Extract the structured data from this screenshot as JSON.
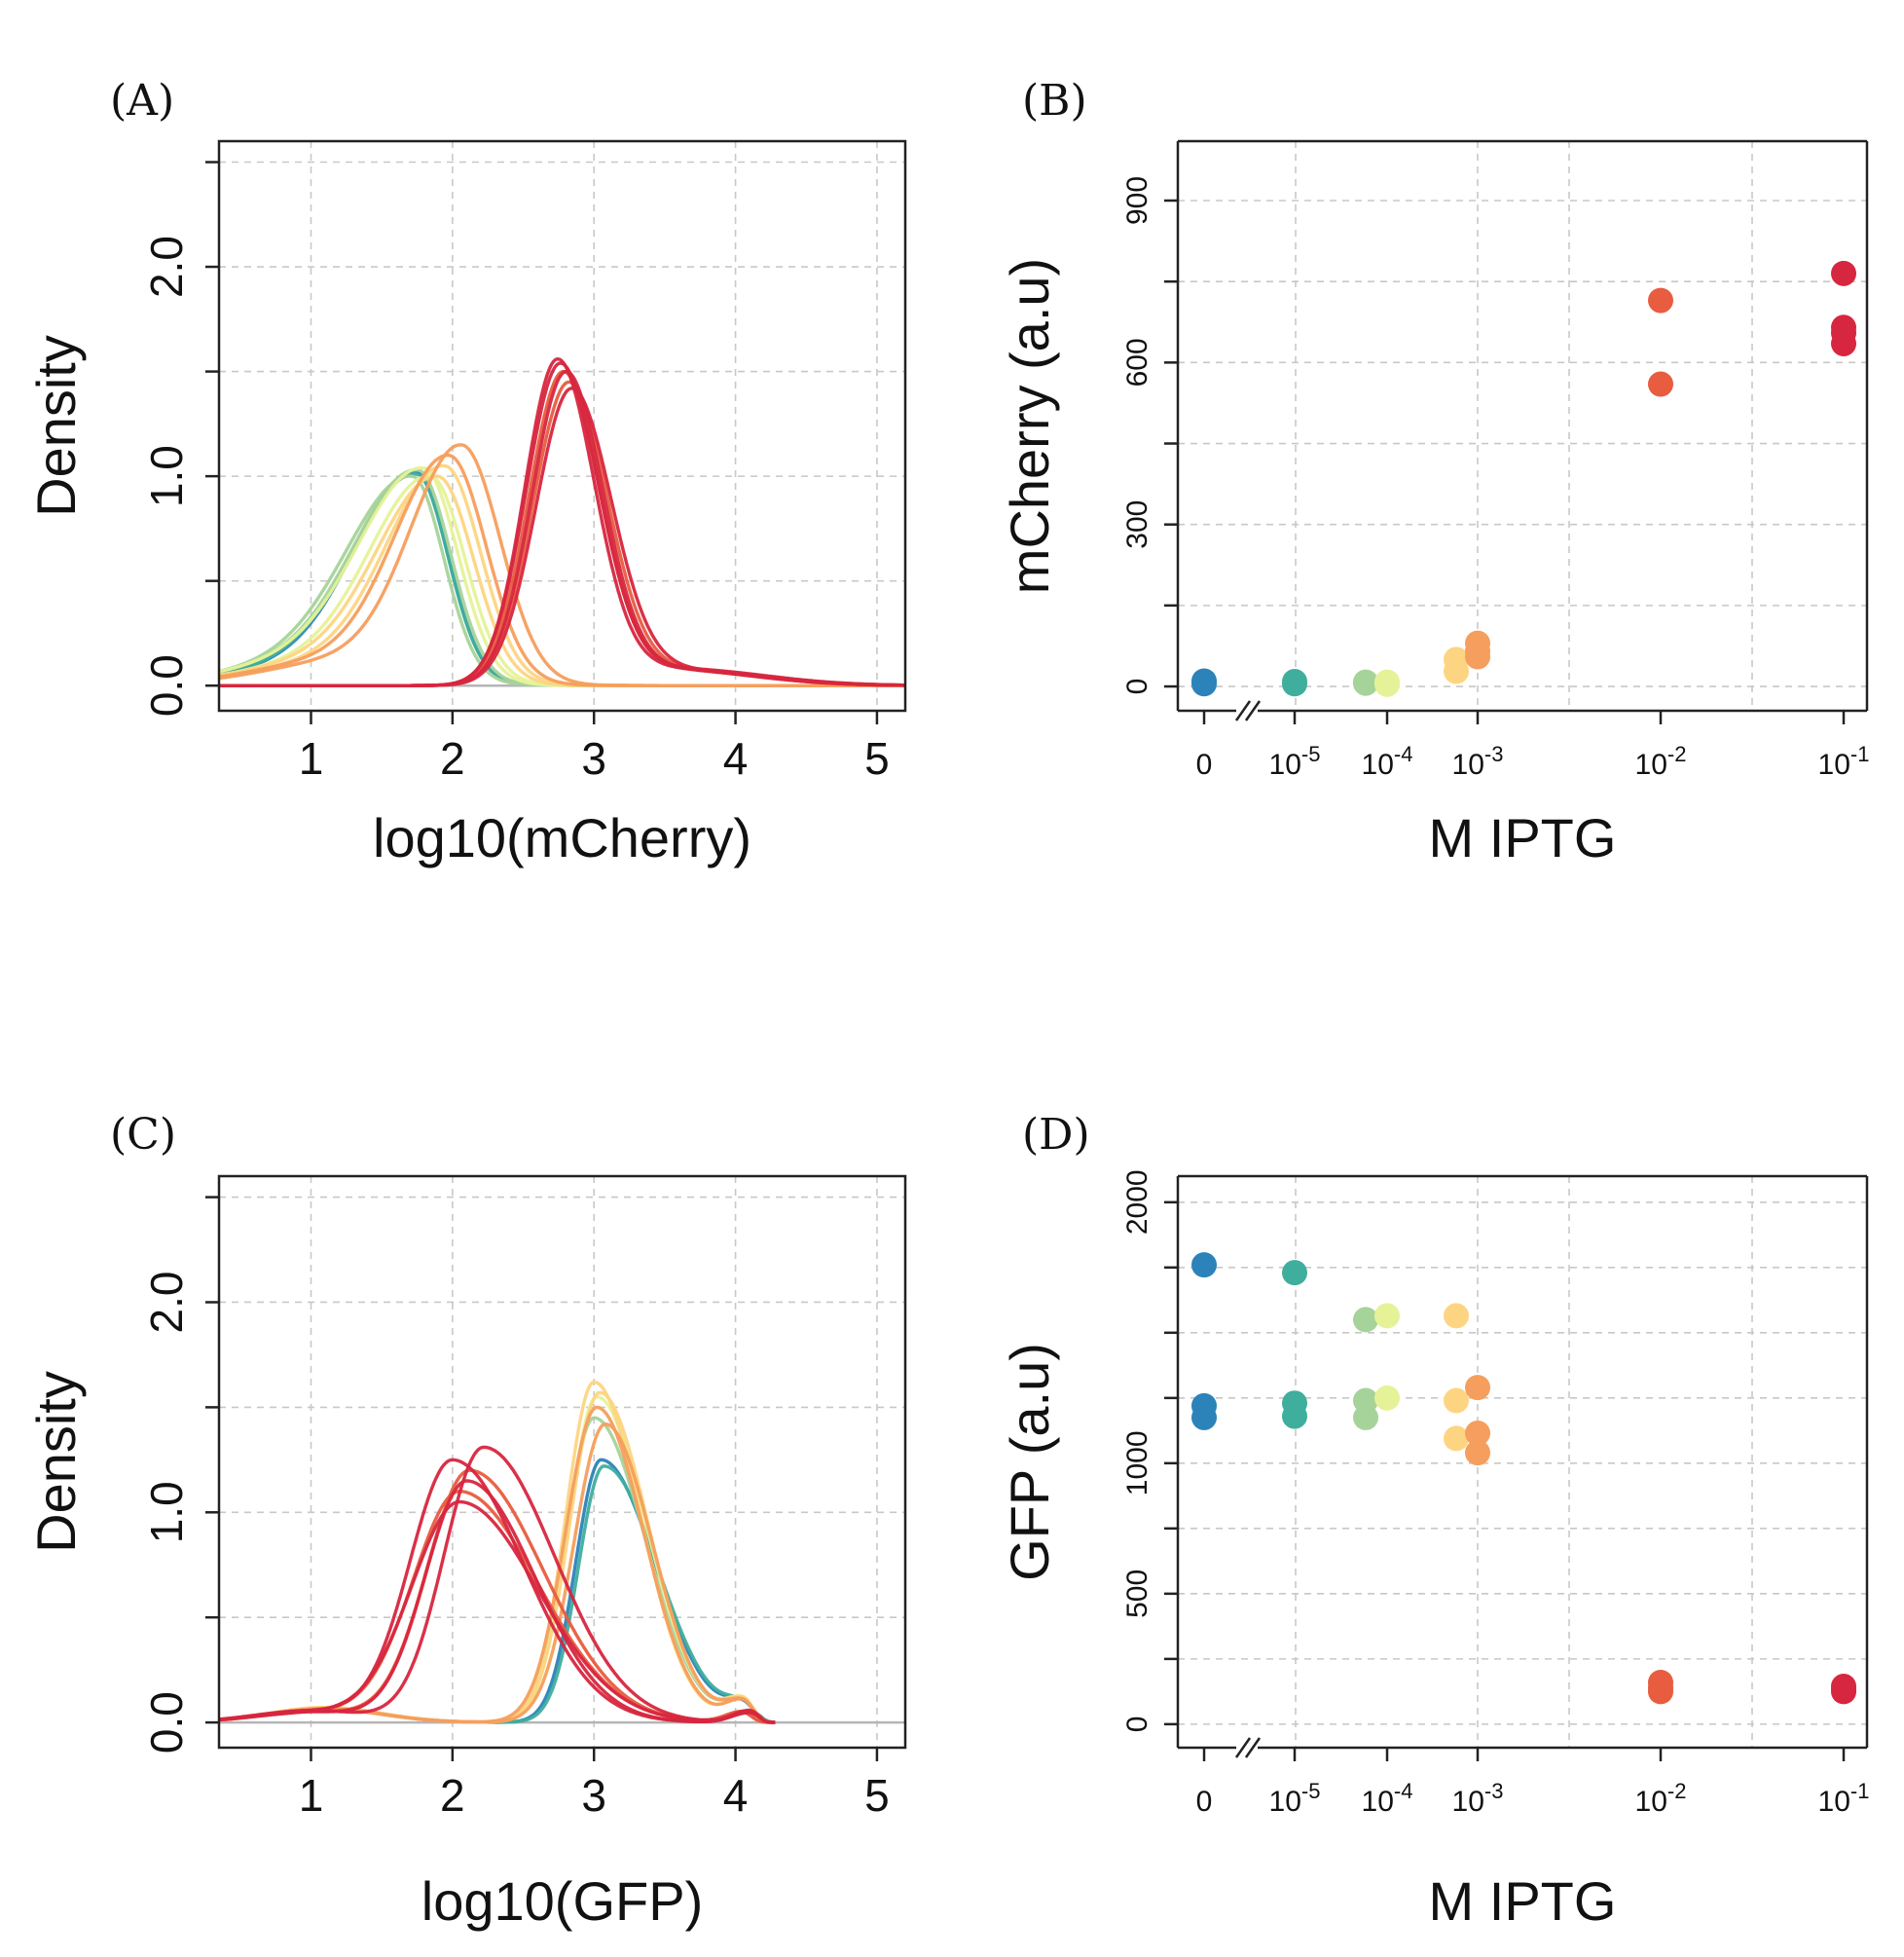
{
  "palette": [
    "#2b83ba",
    "#3fae9d",
    "#a6d399",
    "#e6f298",
    "#fdd582",
    "#f59e5d",
    "#e85c3f",
    "#d7263f"
  ],
  "chart_data": [
    {
      "id": "A",
      "panel_label": "(A)",
      "type": "line",
      "xlabel": "log10(mCherry)",
      "ylabel": "Density",
      "xlim": [
        0.35,
        5.2
      ],
      "ylim": [
        -0.12,
        2.6
      ],
      "xticks": [
        1,
        2,
        3,
        4,
        5
      ],
      "yticks": [
        0.0,
        1.0,
        2.0
      ],
      "ytick_labels": [
        "0.0",
        "1.0",
        "2.0"
      ],
      "grid_y": [
        0.0,
        0.5,
        1.0,
        1.5,
        2.0,
        2.5
      ],
      "series": [
        {
          "group": 1,
          "components": [
            {
              "w": 0.9,
              "mu": 1.75,
              "sl": 0.42,
              "sr": 0.22
            },
            {
              "w": 0.1,
              "mu": 1.1,
              "sl": 0.6,
              "sr": 0.6
            }
          ],
          "peak": 1.02
        },
        {
          "group": 2,
          "components": [
            {
              "w": 0.9,
              "mu": 1.75,
              "sl": 0.43,
              "sr": 0.22
            },
            {
              "w": 0.1,
              "mu": 1.1,
              "sl": 0.6,
              "sr": 0.6
            }
          ],
          "peak": 1.01
        },
        {
          "group": 3,
          "components": [
            {
              "w": 0.9,
              "mu": 1.72,
              "sl": 0.45,
              "sr": 0.22
            },
            {
              "w": 0.1,
              "mu": 1.0,
              "sl": 0.6,
              "sr": 0.6
            }
          ],
          "peak": 1.0
        },
        {
          "group": 3,
          "components": [
            {
              "w": 0.9,
              "mu": 1.76,
              "sl": 0.44,
              "sr": 0.23
            },
            {
              "w": 0.1,
              "mu": 1.0,
              "sl": 0.6,
              "sr": 0.6
            }
          ],
          "peak": 1.03
        },
        {
          "group": 4,
          "components": [
            {
              "w": 0.9,
              "mu": 1.8,
              "sl": 0.45,
              "sr": 0.24
            },
            {
              "w": 0.1,
              "mu": 1.0,
              "sl": 0.6,
              "sr": 0.6
            }
          ],
          "peak": 1.04
        },
        {
          "group": 4,
          "components": [
            {
              "w": 0.9,
              "mu": 1.85,
              "sl": 0.42,
              "sr": 0.24
            },
            {
              "w": 0.1,
              "mu": 1.1,
              "sl": 0.6,
              "sr": 0.6
            }
          ],
          "peak": 1.0
        },
        {
          "group": 5,
          "components": [
            {
              "w": 0.9,
              "mu": 1.9,
              "sl": 0.42,
              "sr": 0.25
            },
            {
              "w": 0.1,
              "mu": 1.1,
              "sl": 0.6,
              "sr": 0.6
            }
          ],
          "peak": 1.0
        },
        {
          "group": 5,
          "components": [
            {
              "w": 0.9,
              "mu": 1.95,
              "sl": 0.4,
              "sr": 0.25
            },
            {
              "w": 0.1,
              "mu": 1.2,
              "sl": 0.6,
              "sr": 0.6
            }
          ],
          "peak": 1.05
        },
        {
          "group": 6,
          "components": [
            {
              "w": 0.9,
              "mu": 1.98,
              "sl": 0.38,
              "sr": 0.26
            },
            {
              "w": 0.1,
              "mu": 1.2,
              "sl": 0.6,
              "sr": 0.6
            }
          ],
          "peak": 1.1
        },
        {
          "group": 6,
          "components": [
            {
              "w": 0.9,
              "mu": 2.07,
              "sl": 0.36,
              "sr": 0.27
            },
            {
              "w": 0.1,
              "mu": 1.3,
              "sl": 0.6,
              "sr": 0.6
            }
          ],
          "peak": 1.15
        },
        {
          "group": 7,
          "components": [
            {
              "w": 0.95,
              "mu": 2.78,
              "sl": 0.24,
              "sr": 0.26
            },
            {
              "w": 0.05,
              "mu": 3.5,
              "sl": 0.5,
              "sr": 0.6
            }
          ],
          "peak": 1.5
        },
        {
          "group": 7,
          "components": [
            {
              "w": 0.95,
              "mu": 2.82,
              "sl": 0.25,
              "sr": 0.27
            },
            {
              "w": 0.05,
              "mu": 3.6,
              "sl": 0.5,
              "sr": 0.6
            }
          ],
          "peak": 1.45
        },
        {
          "group": 8,
          "components": [
            {
              "w": 0.95,
              "mu": 2.74,
              "sl": 0.23,
              "sr": 0.26
            },
            {
              "w": 0.05,
              "mu": 3.5,
              "sl": 0.5,
              "sr": 0.6
            }
          ],
          "peak": 1.56
        },
        {
          "group": 8,
          "components": [
            {
              "w": 0.95,
              "mu": 2.76,
              "sl": 0.24,
              "sr": 0.27
            },
            {
              "w": 0.05,
              "mu": 3.6,
              "sl": 0.5,
              "sr": 0.6
            }
          ],
          "peak": 1.54
        },
        {
          "group": 8,
          "components": [
            {
              "w": 0.95,
              "mu": 2.8,
              "sl": 0.24,
              "sr": 0.26
            },
            {
              "w": 0.05,
              "mu": 3.5,
              "sl": 0.5,
              "sr": 0.6
            }
          ],
          "peak": 1.5
        },
        {
          "group": 8,
          "components": [
            {
              "w": 0.95,
              "mu": 2.84,
              "sl": 0.25,
              "sr": 0.28
            },
            {
              "w": 0.05,
              "mu": 3.6,
              "sl": 0.5,
              "sr": 0.6
            }
          ],
          "peak": 1.42
        }
      ]
    },
    {
      "id": "B",
      "panel_label": "(B)",
      "type": "scatter",
      "xlabel": "M IPTG",
      "ylabel": "mCherry (a.u)",
      "ylim": [
        -45,
        1010
      ],
      "yticks": [
        0,
        300,
        600,
        900
      ],
      "ytick_labels": [
        "0",
        "300",
        "600",
        "900"
      ],
      "grid_y": [
        0,
        150,
        300,
        450,
        600,
        750,
        900
      ],
      "x_categories": [
        {
          "base": "0",
          "exp": ""
        },
        {
          "base": "10",
          "exp": "-5"
        },
        {
          "base": "10",
          "exp": "-4"
        },
        {
          "base": "10",
          "exp": "-3"
        },
        {
          "base": "10",
          "exp": "-2"
        },
        {
          "base": "10",
          "exp": "-1"
        }
      ],
      "x_scale_note": "log axis with break between 0 and 10^-5",
      "points": [
        {
          "x": "0",
          "y": 5,
          "group": 1
        },
        {
          "x": "0",
          "y": 10,
          "group": 1
        },
        {
          "x": "1e-5",
          "y": 5,
          "group": 2
        },
        {
          "x": "1e-5",
          "y": 9,
          "group": 2
        },
        {
          "x": "5e-5",
          "y": 6,
          "group": 3
        },
        {
          "x": "5e-5",
          "y": 8,
          "group": 3
        },
        {
          "x": "1e-4",
          "y": 4,
          "group": 4
        },
        {
          "x": "1e-4",
          "y": 8,
          "group": 4
        },
        {
          "x": "5e-4",
          "y": 28,
          "group": 5
        },
        {
          "x": "5e-4",
          "y": 50,
          "group": 5
        },
        {
          "x": "1e-3",
          "y": 55,
          "group": 6
        },
        {
          "x": "1e-3",
          "y": 65,
          "group": 6
        },
        {
          "x": "1e-3",
          "y": 80,
          "group": 6
        },
        {
          "x": "1e-2",
          "y": 560,
          "group": 7
        },
        {
          "x": "1e-2",
          "y": 715,
          "group": 7
        },
        {
          "x": "1e-1",
          "y": 635,
          "group": 8
        },
        {
          "x": "1e-1",
          "y": 655,
          "group": 8
        },
        {
          "x": "1e-1",
          "y": 665,
          "group": 8
        },
        {
          "x": "1e-1",
          "y": 765,
          "group": 8
        }
      ]
    },
    {
      "id": "C",
      "panel_label": "(C)",
      "type": "line",
      "xlabel": "log10(GFP)",
      "ylabel": "Density",
      "xlim": [
        0.35,
        5.2
      ],
      "ylim": [
        -0.12,
        2.6
      ],
      "xticks": [
        1,
        2,
        3,
        4,
        5
      ],
      "yticks": [
        0.0,
        1.0,
        2.0
      ],
      "ytick_labels": [
        "0.0",
        "1.0",
        "2.0"
      ],
      "grid_y": [
        0.0,
        0.5,
        1.0,
        1.5,
        2.0,
        2.5
      ],
      "series": [
        {
          "group": 1,
          "components": [
            {
              "w": 0.9,
              "mu": 3.05,
              "sl": 0.18,
              "sr": 0.38
            },
            {
              "w": 0.05,
              "mu": 4.05,
              "sl": 0.12,
              "sr": 0.07
            },
            {
              "w": 0.05,
              "mu": 1.1,
              "sl": 0.4,
              "sr": 0.4
            }
          ],
          "peak": 1.25
        },
        {
          "group": 2,
          "components": [
            {
              "w": 0.9,
              "mu": 3.07,
              "sl": 0.18,
              "sr": 0.38
            },
            {
              "w": 0.05,
              "mu": 4.05,
              "sl": 0.12,
              "sr": 0.07
            },
            {
              "w": 0.05,
              "mu": 1.1,
              "sl": 0.4,
              "sr": 0.4
            }
          ],
          "peak": 1.22
        },
        {
          "group": 3,
          "components": [
            {
              "w": 0.9,
              "mu": 3.0,
              "sl": 0.2,
              "sr": 0.36
            },
            {
              "w": 0.06,
              "mu": 4.05,
              "sl": 0.12,
              "sr": 0.07
            },
            {
              "w": 0.04,
              "mu": 1.1,
              "sl": 0.4,
              "sr": 0.4
            }
          ],
          "peak": 1.45
        },
        {
          "group": 4,
          "components": [
            {
              "w": 0.9,
              "mu": 3.02,
              "sl": 0.2,
              "sr": 0.35
            },
            {
              "w": 0.06,
              "mu": 4.05,
              "sl": 0.12,
              "sr": 0.07
            },
            {
              "w": 0.04,
              "mu": 1.1,
              "sl": 0.4,
              "sr": 0.4
            }
          ],
          "peak": 1.55
        },
        {
          "group": 5,
          "components": [
            {
              "w": 0.9,
              "mu": 3.0,
              "sl": 0.2,
              "sr": 0.33
            },
            {
              "w": 0.06,
              "mu": 4.05,
              "sl": 0.12,
              "sr": 0.07
            },
            {
              "w": 0.04,
              "mu": 1.1,
              "sl": 0.4,
              "sr": 0.4
            }
          ],
          "peak": 1.62
        },
        {
          "group": 5,
          "components": [
            {
              "w": 0.9,
              "mu": 3.04,
              "sl": 0.21,
              "sr": 0.34
            },
            {
              "w": 0.06,
              "mu": 4.05,
              "sl": 0.12,
              "sr": 0.07
            },
            {
              "w": 0.04,
              "mu": 1.1,
              "sl": 0.4,
              "sr": 0.4
            }
          ],
          "peak": 1.57
        },
        {
          "group": 6,
          "components": [
            {
              "w": 0.9,
              "mu": 3.02,
              "sl": 0.22,
              "sr": 0.33
            },
            {
              "w": 0.06,
              "mu": 4.05,
              "sl": 0.12,
              "sr": 0.07
            },
            {
              "w": 0.04,
              "mu": 1.1,
              "sl": 0.4,
              "sr": 0.4
            }
          ],
          "peak": 1.5
        },
        {
          "group": 6,
          "components": [
            {
              "w": 0.9,
              "mu": 3.08,
              "sl": 0.22,
              "sr": 0.33
            },
            {
              "w": 0.06,
              "mu": 4.05,
              "sl": 0.12,
              "sr": 0.07
            },
            {
              "w": 0.04,
              "mu": 1.1,
              "sl": 0.4,
              "sr": 0.4
            }
          ],
          "peak": 1.42
        },
        {
          "group": 7,
          "components": [
            {
              "w": 0.92,
              "mu": 2.05,
              "sl": 0.33,
              "sr": 0.55
            },
            {
              "w": 0.04,
              "mu": 4.05,
              "sl": 0.12,
              "sr": 0.06
            },
            {
              "w": 0.04,
              "mu": 1.0,
              "sl": 0.4,
              "sr": 0.4
            }
          ],
          "peak": 1.1
        },
        {
          "group": 7,
          "components": [
            {
              "w": 0.92,
              "mu": 2.12,
              "sl": 0.3,
              "sr": 0.52
            },
            {
              "w": 0.04,
              "mu": 4.05,
              "sl": 0.12,
              "sr": 0.06
            },
            {
              "w": 0.04,
              "mu": 1.0,
              "sl": 0.4,
              "sr": 0.4
            }
          ],
          "peak": 1.2
        },
        {
          "group": 8,
          "components": [
            {
              "w": 0.92,
              "mu": 2.0,
              "sl": 0.3,
              "sr": 0.5
            },
            {
              "w": 0.04,
              "mu": 4.1,
              "sl": 0.12,
              "sr": 0.06
            },
            {
              "w": 0.04,
              "mu": 1.0,
              "sl": 0.4,
              "sr": 0.4
            }
          ],
          "peak": 1.25
        },
        {
          "group": 8,
          "components": [
            {
              "w": 0.92,
              "mu": 2.22,
              "sl": 0.28,
              "sr": 0.5
            },
            {
              "w": 0.04,
              "mu": 4.1,
              "sl": 0.12,
              "sr": 0.06
            },
            {
              "w": 0.04,
              "mu": 1.0,
              "sl": 0.4,
              "sr": 0.4
            }
          ],
          "peak": 1.31
        },
        {
          "group": 8,
          "components": [
            {
              "w": 0.92,
              "mu": 2.1,
              "sl": 0.29,
              "sr": 0.48
            },
            {
              "w": 0.04,
              "mu": 4.1,
              "sl": 0.12,
              "sr": 0.06
            },
            {
              "w": 0.04,
              "mu": 1.0,
              "sl": 0.4,
              "sr": 0.4
            }
          ],
          "peak": 1.15
        },
        {
          "group": 8,
          "components": [
            {
              "w": 0.92,
              "mu": 2.05,
              "sl": 0.34,
              "sr": 0.55
            },
            {
              "w": 0.04,
              "mu": 4.1,
              "sl": 0.12,
              "sr": 0.06
            },
            {
              "w": 0.04,
              "mu": 1.0,
              "sl": 0.4,
              "sr": 0.4
            }
          ],
          "peak": 1.05
        }
      ]
    },
    {
      "id": "D",
      "panel_label": "(D)",
      "type": "scatter",
      "xlabel": "M IPTG",
      "ylabel": "GFP (a.u)",
      "ylim": [
        -90,
        2100
      ],
      "yticks": [
        0,
        500,
        1000,
        2000
      ],
      "ytick_labels": [
        "0",
        "500",
        "1000",
        "2000"
      ],
      "grid_y": [
        0,
        250,
        500,
        750,
        1000,
        1250,
        1500,
        1750,
        2000
      ],
      "x_categories": [
        {
          "base": "0",
          "exp": ""
        },
        {
          "base": "10",
          "exp": "-5"
        },
        {
          "base": "10",
          "exp": "-4"
        },
        {
          "base": "10",
          "exp": "-3"
        },
        {
          "base": "10",
          "exp": "-2"
        },
        {
          "base": "10",
          "exp": "-1"
        }
      ],
      "x_scale_note": "log axis with break between 0 and 10^-5",
      "points": [
        {
          "x": "0",
          "y": 1175,
          "group": 1
        },
        {
          "x": "0",
          "y": 1220,
          "group": 1
        },
        {
          "x": "0",
          "y": 1760,
          "group": 1
        },
        {
          "x": "1e-5",
          "y": 1180,
          "group": 2
        },
        {
          "x": "1e-5",
          "y": 1230,
          "group": 2
        },
        {
          "x": "1e-5",
          "y": 1730,
          "group": 2
        },
        {
          "x": "5e-5",
          "y": 1175,
          "group": 3
        },
        {
          "x": "5e-5",
          "y": 1240,
          "group": 3
        },
        {
          "x": "5e-5",
          "y": 1550,
          "group": 3
        },
        {
          "x": "1e-4",
          "y": 1250,
          "group": 4
        },
        {
          "x": "1e-4",
          "y": 1565,
          "group": 4
        },
        {
          "x": "5e-4",
          "y": 1095,
          "group": 5
        },
        {
          "x": "5e-4",
          "y": 1240,
          "group": 5
        },
        {
          "x": "5e-4",
          "y": 1565,
          "group": 5
        },
        {
          "x": "1e-3",
          "y": 1040,
          "group": 6
        },
        {
          "x": "1e-3",
          "y": 1115,
          "group": 6
        },
        {
          "x": "1e-3",
          "y": 1290,
          "group": 6
        },
        {
          "x": "1e-2",
          "y": 125,
          "group": 7
        },
        {
          "x": "1e-2",
          "y": 140,
          "group": 7
        },
        {
          "x": "1e-2",
          "y": 160,
          "group": 7
        },
        {
          "x": "1e-1",
          "y": 125,
          "group": 8
        },
        {
          "x": "1e-1",
          "y": 135,
          "group": 8
        },
        {
          "x": "1e-1",
          "y": 145,
          "group": 8
        }
      ]
    }
  ]
}
